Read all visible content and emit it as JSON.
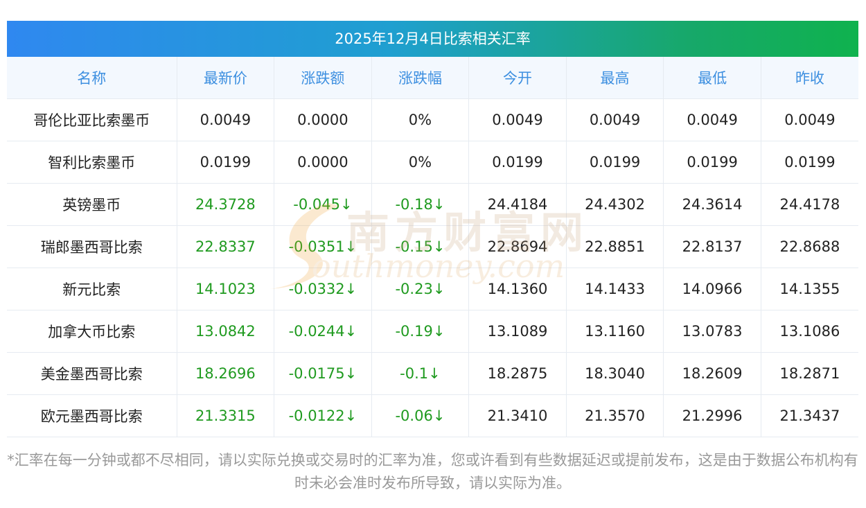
{
  "title": "2025年12月4日比索相关汇率",
  "columns": [
    "名称",
    "最新价",
    "涨跌额",
    "涨跌幅",
    "今开",
    "最高",
    "最低",
    "昨收"
  ],
  "rows": [
    {
      "name": "哥伦比亚比索墨币",
      "latest": "0.0049",
      "change": "0.0000",
      "change_pct": "0%",
      "open": "0.0049",
      "high": "0.0049",
      "low": "0.0049",
      "prev_close": "0.0049",
      "down": false
    },
    {
      "name": "智利比索墨币",
      "latest": "0.0199",
      "change": "0.0000",
      "change_pct": "0%",
      "open": "0.0199",
      "high": "0.0199",
      "low": "0.0199",
      "prev_close": "0.0199",
      "down": false
    },
    {
      "name": "英镑墨币",
      "latest": "24.3728",
      "change": "-0.045↓",
      "change_pct": "-0.18↓",
      "open": "24.4184",
      "high": "24.4302",
      "low": "24.3614",
      "prev_close": "24.4178",
      "down": true
    },
    {
      "name": "瑞郎墨西哥比索",
      "latest": "22.8337",
      "change": "-0.0351↓",
      "change_pct": "-0.15↓",
      "open": "22.8694",
      "high": "22.8851",
      "low": "22.8137",
      "prev_close": "22.8688",
      "down": true
    },
    {
      "name": "新元比索",
      "latest": "14.1023",
      "change": "-0.0332↓",
      "change_pct": "-0.23↓",
      "open": "14.1360",
      "high": "14.1433",
      "low": "14.0966",
      "prev_close": "14.1355",
      "down": true
    },
    {
      "name": "加拿大币比索",
      "latest": "13.0842",
      "change": "-0.0244↓",
      "change_pct": "-0.19↓",
      "open": "13.1089",
      "high": "13.1160",
      "low": "13.0783",
      "prev_close": "13.1086",
      "down": true
    },
    {
      "name": "美金墨西哥比索",
      "latest": "18.2696",
      "change": "-0.0175↓",
      "change_pct": "-0.1↓",
      "open": "18.2875",
      "high": "18.3040",
      "low": "18.2609",
      "prev_close": "18.2871",
      "down": true
    },
    {
      "name": "欧元墨西哥比索",
      "latest": "21.3315",
      "change": "-0.0122↓",
      "change_pct": "-0.06↓",
      "open": "21.3410",
      "high": "21.3570",
      "low": "21.2996",
      "prev_close": "21.3437",
      "down": true
    }
  ],
  "watermark": {
    "cn": "南方财富网",
    "en": "outhmoney.com"
  },
  "footnote": "*汇率在每一分钟或都不尽相同，请以实际兑换或交易时的汇率为准，您或许看到有些数据延迟或提前发布，这是由于数据公布机构有时未必会准时发布所导致，请以实际为准。",
  "colors": {
    "header_text": "#3d8fe0",
    "header_bg": "#f3f8fe",
    "down": "#1f9a1f",
    "title_gradient_start": "#2f88f0",
    "title_gradient_end": "#0fb24e"
  }
}
